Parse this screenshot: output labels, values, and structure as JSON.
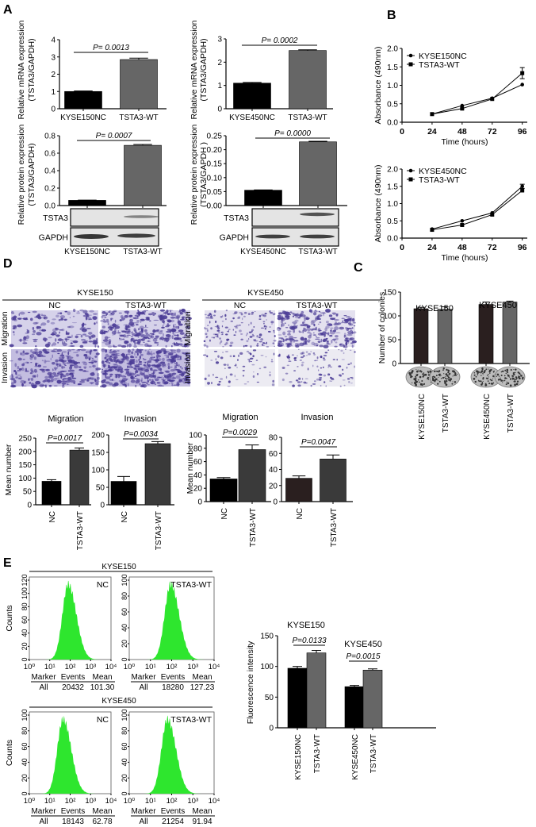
{
  "panel_labels": [
    "A",
    "B",
    "C",
    "D",
    "E"
  ],
  "chart_data": [
    {
      "type": "bar",
      "categories": [
        "KYSE150NC",
        "TSTA3-WT"
      ],
      "values": [
        1.0,
        2.85
      ],
      "errors": [
        0.03,
        0.08
      ],
      "ylim": [
        0,
        4
      ],
      "ytick_labels": [
        "0",
        "1",
        "2",
        "3",
        "4"
      ],
      "ylabel": [
        "Relative  mRNA expression",
        "(TSTA3/GAPDH)"
      ],
      "pvalues": [
        "P= 0.0013"
      ],
      "colors": [
        "#000000",
        "#666666"
      ]
    },
    {
      "type": "bar",
      "categories": [
        "KYSE450NC",
        "TSTA3-WT"
      ],
      "values": [
        1.1,
        2.5
      ],
      "errors": [
        0.03,
        0.03
      ],
      "ylim": [
        0,
        3
      ],
      "ytick_labels": [
        "0",
        "1",
        "2",
        "3"
      ],
      "ylabel": [
        "Relative  mRNA expression",
        "(TSTA3/GAPDH)"
      ],
      "pvalues": [
        "P= 0.0002"
      ],
      "colors": [
        "#000000",
        "#666666"
      ]
    },
    {
      "type": "bar",
      "categories": [
        "KYSE150NC",
        "TSTA3-WT"
      ],
      "values": [
        0.06,
        0.69
      ],
      "errors": [
        0.003,
        0.01
      ],
      "ylim": [
        0,
        0.8
      ],
      "ytick_labels": [
        "0.0",
        "0.2",
        "0.4",
        "0.6",
        "0.8"
      ],
      "ylabel": [
        "Relative  protein expression",
        "(TSTA3/GAPDH)"
      ],
      "pvalues": [
        "P= 0.0007"
      ],
      "colors": [
        "#000000",
        "#666666"
      ]
    },
    {
      "type": "bar",
      "categories": [
        "KYSE450NC",
        "TSTA3-WT"
      ],
      "values": [
        0.055,
        0.228
      ],
      "errors": [
        0.001,
        0.002
      ],
      "ylim": [
        0,
        0.25
      ],
      "ytick_labels": [
        "0.00",
        "0.05",
        "0.10",
        "0.15",
        "0.20",
        "0.25"
      ],
      "ylabel": [
        "Relative  protein expression",
        "(TSTA3/GAPDH )"
      ],
      "pvalues": [
        "P= 0.0000"
      ],
      "colors": [
        "#000000",
        "#666666"
      ]
    },
    {
      "type": "line",
      "x": [
        24,
        48,
        72,
        96
      ],
      "xlim": [
        0,
        100
      ],
      "xtick_labels": [
        "0",
        "24",
        "48",
        "72",
        "96"
      ],
      "ylim": [
        0,
        2
      ],
      "ytick_labels": [
        "0.0",
        "0.5",
        "1.0",
        "1.5",
        "2.0"
      ],
      "xlabel": "Time (hours)",
      "ylabel": "Absorbance (490nm)",
      "legend": "top-left",
      "series": [
        {
          "name": "KYSE150NC",
          "values": [
            0.22,
            0.45,
            0.65,
            1.02
          ],
          "errors": [
            0.02,
            0.02,
            0.02,
            0.02
          ]
        },
        {
          "name": "TSTA3-WT",
          "values": [
            0.22,
            0.37,
            0.63,
            1.33
          ],
          "errors": [
            0.02,
            0.02,
            0.03,
            0.15
          ]
        }
      ]
    },
    {
      "type": "line",
      "x": [
        24,
        48,
        72,
        96
      ],
      "xlim": [
        0,
        100
      ],
      "xtick_labels": [
        "0",
        "24",
        "48",
        "72",
        "96"
      ],
      "ylim": [
        0,
        2
      ],
      "ytick_labels": [
        "0.0",
        "0.5",
        "1.0",
        "1.5",
        "2.0"
      ],
      "xlabel": "Time (hours)",
      "ylabel": "Absorbance (490nm)",
      "legend": "top-left",
      "series": [
        {
          "name": "KYSE450NC",
          "values": [
            0.26,
            0.5,
            0.73,
            1.5
          ],
          "errors": [
            0.02,
            0.02,
            0.02,
            0.06
          ]
        },
        {
          "name": "TSTA3-WT",
          "values": [
            0.24,
            0.38,
            0.68,
            1.38
          ],
          "errors": [
            0.02,
            0.02,
            0.02,
            0.03
          ]
        }
      ]
    },
    {
      "type": "bar",
      "categories": [
        "KYSE150NC",
        "TSTA3-WT",
        "KYSE450NC",
        "TSTA3-WT"
      ],
      "values": [
        115,
        114,
        124,
        129
      ],
      "errors": [
        3,
        5,
        5,
        2
      ],
      "ylim": [
        0,
        150
      ],
      "ytick_labels": [
        "0",
        "50",
        "100",
        "150"
      ],
      "ylabel": [
        "Number of colonies"
      ],
      "titles": [
        "KYSE150",
        "KYSE450"
      ],
      "colors": [
        "#2a1f1f",
        "#666666",
        "#2a1f1f",
        "#666666"
      ]
    },
    {
      "type": "bar",
      "title": "Migration",
      "categories": [
        "NC",
        "TSTA3-WT"
      ],
      "values": [
        88,
        205
      ],
      "errors": [
        6,
        8
      ],
      "ylim": [
        0,
        250
      ],
      "ytick_labels": [
        "0",
        "50",
        "100",
        "150",
        "200",
        "250"
      ],
      "ylabel": [
        "Mean number"
      ],
      "pvalues": [
        "P=0.0017"
      ],
      "colors": [
        "#000000",
        "#3a3a3a"
      ]
    },
    {
      "type": "bar",
      "title": "Invasion",
      "categories": [
        "NC",
        "TSTA3-WT"
      ],
      "values": [
        67,
        175
      ],
      "errors": [
        14,
        6
      ],
      "ylim": [
        0,
        200
      ],
      "ytick_labels": [
        "0",
        "50",
        "100",
        "150",
        "200"
      ],
      "pvalues": [
        "P=0.0034"
      ],
      "colors": [
        "#000000",
        "#3a3a3a"
      ]
    },
    {
      "type": "bar",
      "title": "Migration",
      "categories": [
        "NC",
        "TSTA3-WT"
      ],
      "values": [
        34,
        78
      ],
      "errors": [
        2,
        7
      ],
      "ylim": [
        0,
        100
      ],
      "ytick_labels": [
        "0",
        "20",
        "40",
        "60",
        "80",
        "100"
      ],
      "ylabel": [
        "Mean number"
      ],
      "pvalues": [
        "P=0.0029"
      ],
      "colors": [
        "#000000",
        "#3a3a3a"
      ]
    },
    {
      "type": "bar",
      "title": "Invasion",
      "categories": [
        "NC",
        "TSTA3-WT"
      ],
      "values": [
        29,
        53
      ],
      "errors": [
        3,
        5
      ],
      "ylim": [
        0,
        80
      ],
      "ytick_labels": [
        "0",
        "20",
        "40",
        "60",
        "80"
      ],
      "pvalues": [
        "P=0.0047"
      ],
      "colors": [
        "#2a1f1f",
        "#3a3a3a"
      ]
    },
    {
      "type": "bar",
      "categories": [
        "KYSE150NC",
        "TSTA3-WT",
        "KYSE450NC",
        "TSTA3-WT"
      ],
      "values": [
        97,
        122,
        67,
        94
      ],
      "errors": [
        3,
        4,
        2,
        2
      ],
      "ylim": [
        0,
        150
      ],
      "ytick_labels": [
        "0",
        "50",
        "100",
        "150"
      ],
      "ylabel": [
        "Fluorescence intensity"
      ],
      "titles": [
        "KYSE150",
        "KYSE450"
      ],
      "pvalues": [
        "P=0.0133",
        "P=0.0015"
      ],
      "colors": [
        "#000000",
        "#666666",
        "#000000",
        "#666666"
      ]
    }
  ],
  "blots": [
    {
      "rows": [
        "TSTA3",
        "GAPDH"
      ]
    },
    {
      "rows": [
        "TSTA3",
        "GAPDH"
      ]
    }
  ],
  "transwell": {
    "groups": [
      {
        "title": "KYSE150",
        "cols": [
          "NC",
          "TSTA3-WT"
        ],
        "rows": [
          "Migration",
          "Invasion"
        ]
      },
      {
        "title": "KYSE450",
        "cols": [
          "NC",
          "TSTA3-WT"
        ],
        "rows": [
          "Migration",
          "Invasion"
        ]
      }
    ]
  },
  "flow": {
    "ylabel": "Counts",
    "xtick_labels": [
      "10⁰",
      "10¹",
      "10²",
      "10³",
      "10⁴"
    ],
    "table_headers": [
      "Marker",
      "Events",
      "Mean"
    ],
    "groups": [
      {
        "title": "KYSE150",
        "panels": [
          {
            "label": "NC",
            "ytick_labels": [
              "0",
              "20",
              "40",
              "60",
              "80",
              "100",
              "120"
            ],
            "marker": "All",
            "events": "20432",
            "mean": "101.30"
          },
          {
            "label": "TSTA3-WT",
            "ytick_labels": [
              "0",
              "20",
              "40",
              "60",
              "80",
              "100"
            ],
            "marker": "All",
            "events": "18280",
            "mean": "127.23"
          }
        ]
      },
      {
        "title": "KYSE450",
        "panels": [
          {
            "label": "NC",
            "ytick_labels": [
              "0",
              "20",
              "40",
              "60",
              "80",
              "100"
            ],
            "marker": "All",
            "events": "18143",
            "mean": "62.78"
          },
          {
            "label": "TSTA3-WT",
            "ytick_labels": [
              "0",
              "20",
              "40",
              "60",
              "80",
              "100"
            ],
            "marker": "All",
            "events": "21254",
            "mean": "91.94"
          }
        ]
      }
    ]
  },
  "colors": {
    "histogram_fill": "#2ee62e",
    "stain": "#4b3c96"
  }
}
